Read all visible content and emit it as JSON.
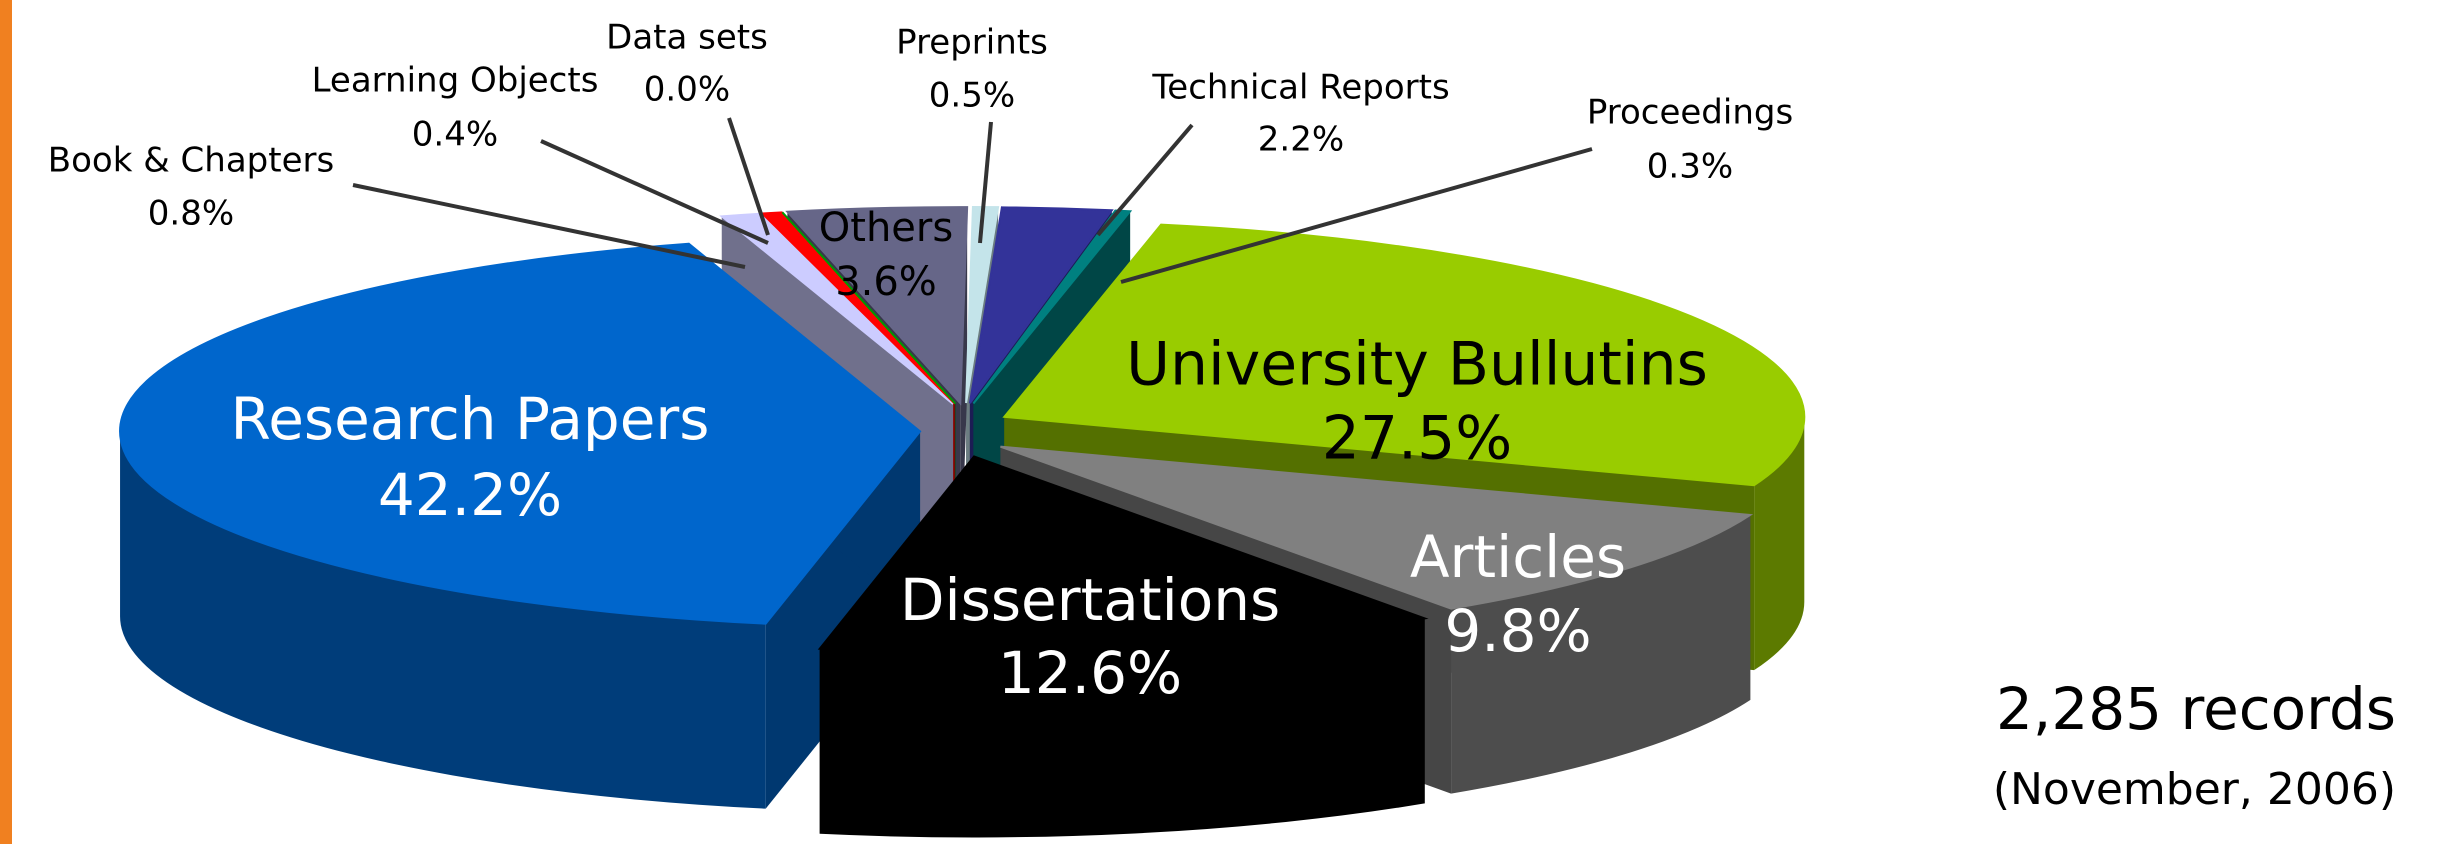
{
  "chart_data": {
    "type": "pie",
    "categories": [
      "Technical Reports",
      "Proceedings",
      "University Bullutins",
      "Articles",
      "Dissertations",
      "Research Papers",
      "Book & Chapters",
      "Learning Objects",
      "Data sets",
      "Others",
      "Preprints"
    ],
    "values": [
      2.2,
      0.3,
      27.5,
      9.8,
      12.6,
      42.2,
      0.8,
      0.4,
      0.0,
      3.6,
      0.5
    ],
    "value_labels": [
      "2.2%",
      "0.3%",
      "27.5%",
      "9.8%",
      "12.6%",
      "42.2%",
      "0.8%",
      "0.4%",
      "0.0%",
      "3.6%",
      "0.5%"
    ],
    "colors": [
      "#333399",
      "#008080",
      "#99cc00",
      "#808080",
      "#000000",
      "#0066cc",
      "#ccccff",
      "#ff0000",
      "#009900",
      "#666688",
      "#c4e4ea"
    ],
    "annotations": [
      "2,285 records",
      "(November, 2006)"
    ]
  }
}
